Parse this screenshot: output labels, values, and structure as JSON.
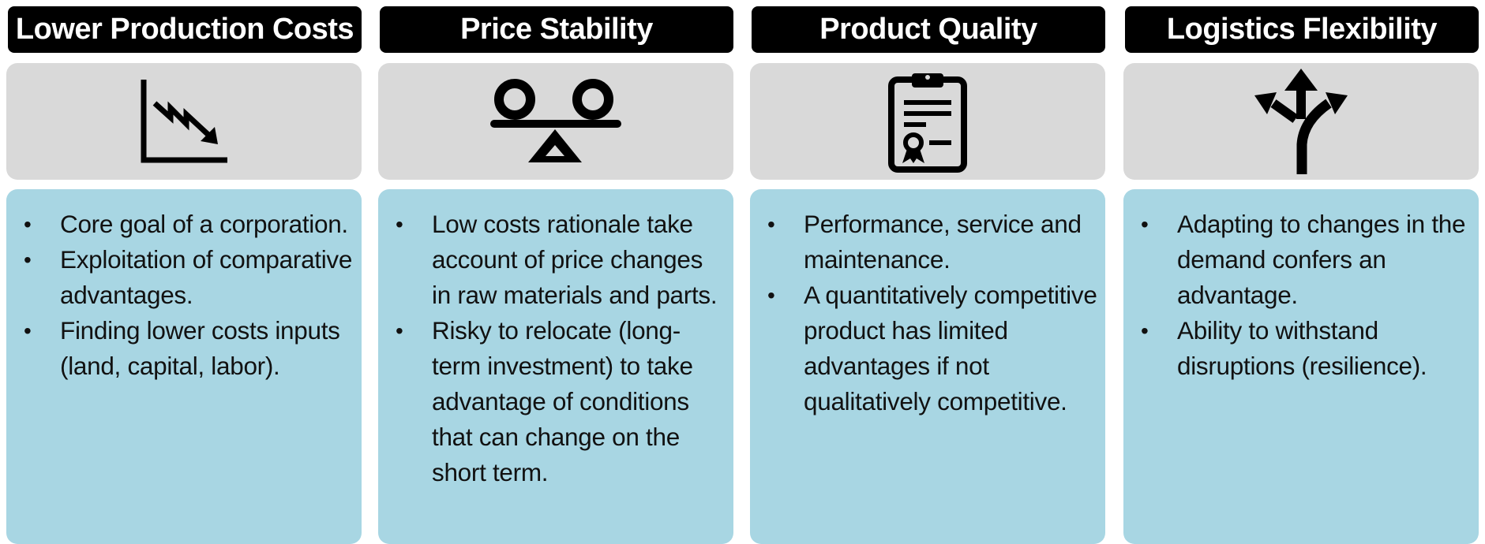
{
  "columns": [
    {
      "title": "Lower Production Costs",
      "icon": "declining-chart-icon",
      "bullets": [
        "Core goal of a corporation.",
        "Exploitation of comparative advantages.",
        "Finding lower costs inputs (land, capital, labor)."
      ]
    },
    {
      "title": "Price Stability",
      "icon": "balance-scale-icon",
      "bullets": [
        "Low costs rationale take account of price changes in raw materials and parts.",
        "Risky to relocate (long-term investment) to take advantage of conditions that can change on the short term."
      ]
    },
    {
      "title": "Product Quality",
      "icon": "certificate-clipboard-icon",
      "bullets": [
        "Performance, service and maintenance.",
        "A quantitatively competitive product has limited advantages if not qualitatively competitive."
      ]
    },
    {
      "title": "Logistics Flexibility",
      "icon": "branching-arrows-icon",
      "bullets": [
        "Adapting to changes in the demand confers an advantage.",
        "Ability to withstand disruptions (resilience)."
      ]
    }
  ],
  "colors": {
    "header_bg": "#000000",
    "header_text": "#ffffff",
    "icon_panel_bg": "#d9d9d9",
    "text_panel_bg": "#a8d6e3"
  }
}
